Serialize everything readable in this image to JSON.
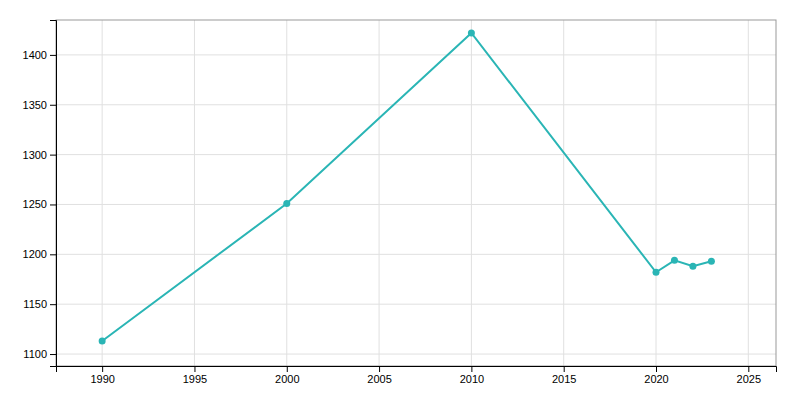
{
  "chart_data": {
    "type": "line",
    "x": [
      1990,
      2000,
      2010,
      2020,
      2021,
      2022,
      2023
    ],
    "values": [
      1113,
      1251,
      1422,
      1182,
      1194,
      1188,
      1193
    ],
    "color": "#2ab5b5",
    "marker": "circle",
    "xlim": [
      1987.5,
      2026.5
    ],
    "ylim": [
      1088,
      1435
    ],
    "xticks": [
      1990,
      1995,
      2000,
      2005,
      2010,
      2015,
      2020,
      2025
    ],
    "yticks": [
      1100,
      1150,
      1200,
      1250,
      1300,
      1350,
      1400
    ],
    "grid": true
  }
}
